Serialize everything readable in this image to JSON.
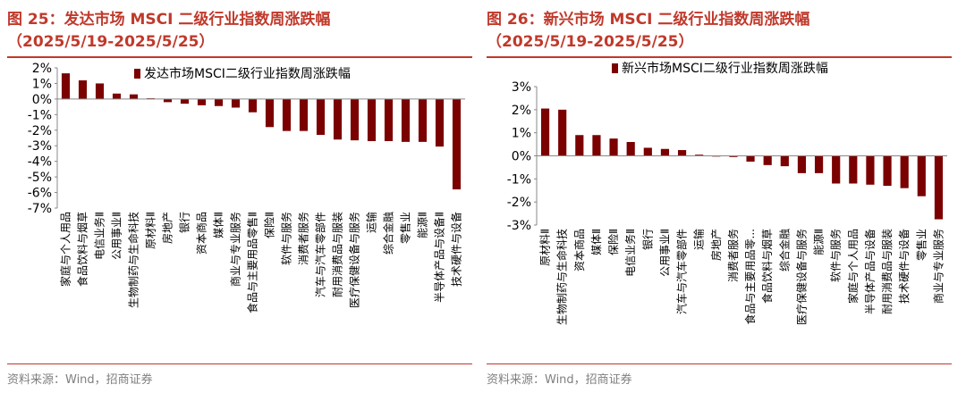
{
  "left": {
    "title_line1": "图 25：发达市场 MSCI 二级行业指数周涨跌幅",
    "title_line2": "（2025/5/19-2025/5/25）",
    "source": "资料来源：Wind，招商证券",
    "chart_data": {
      "type": "bar",
      "legend": "发达市场MSCI二级行业指数周涨跌幅",
      "ylim": [
        -7,
        2
      ],
      "yticks": [
        "2%",
        "1%",
        "0%",
        "-1%",
        "-2%",
        "-3%",
        "-4%",
        "-5%",
        "-6%",
        "-7%"
      ],
      "color": "#7b0000",
      "categories": [
        "家庭与个人用品",
        "食品饮料与烟草",
        "电信业务Ⅱ",
        "公用事业Ⅱ",
        "生物制药与生命科技",
        "原材料Ⅱ",
        "房地产",
        "银行",
        "资本商品",
        "媒体Ⅱ",
        "商业与专业服务",
        "食品与主要用品零售Ⅱ",
        "保险Ⅱ",
        "软件与服务",
        "消费者服务",
        "汽车与汽车零部件",
        "耐用消费品与服装",
        "医疗保健设备与服务",
        "运输",
        "综合金融",
        "零售业",
        "能源Ⅱ",
        "半导体产品与设备Ⅱ",
        "技术硬件与设备"
      ],
      "values": [
        1.65,
        1.2,
        1.0,
        0.35,
        0.3,
        0.05,
        -0.2,
        -0.3,
        -0.4,
        -0.45,
        -0.55,
        -0.85,
        -1.8,
        -2.05,
        -2.05,
        -2.3,
        -2.6,
        -2.65,
        -2.7,
        -2.7,
        -2.75,
        -2.75,
        -3.05,
        -5.8
      ]
    }
  },
  "right": {
    "title_line1": "图 26：新兴市场 MSCI 二级行业指数周涨跌幅",
    "title_line2": "（2025/5/19-2025/5/25）",
    "source": "资料来源：Wind，招商证券",
    "chart_data": {
      "type": "bar",
      "legend": "新兴市场MSCI二级行业指数周涨跌幅",
      "ylim": [
        -3,
        3
      ],
      "yticks": [
        "3%",
        "2%",
        "1%",
        "0%",
        "-1%",
        "-2%",
        "-3%"
      ],
      "color": "#7b0000",
      "categories": [
        "原材料Ⅱ",
        "生物制药与生命科技",
        "资本商品",
        "媒体Ⅱ",
        "保险Ⅱ",
        "电信业务Ⅱ",
        "银行",
        "公用事业Ⅱ",
        "汽车与汽车零部件",
        "运输",
        "房地产",
        "消费者服务",
        "食品与主要用品零...",
        "食品饮料与烟草",
        "综合金融",
        "医疗保健设备与服务",
        "能源Ⅱ",
        "软件与服务",
        "家庭与个人用品",
        "半导体产品与设备",
        "耐用消费品与服装",
        "技术硬件与设备",
        "零售业",
        "商业与专业服务"
      ],
      "values": [
        2.05,
        2.0,
        0.9,
        0.9,
        0.75,
        0.6,
        0.35,
        0.3,
        0.25,
        0.05,
        -0.02,
        -0.05,
        -0.25,
        -0.4,
        -0.45,
        -0.75,
        -0.75,
        -1.2,
        -1.2,
        -1.25,
        -1.3,
        -1.4,
        -1.75,
        -2.75
      ]
    }
  }
}
